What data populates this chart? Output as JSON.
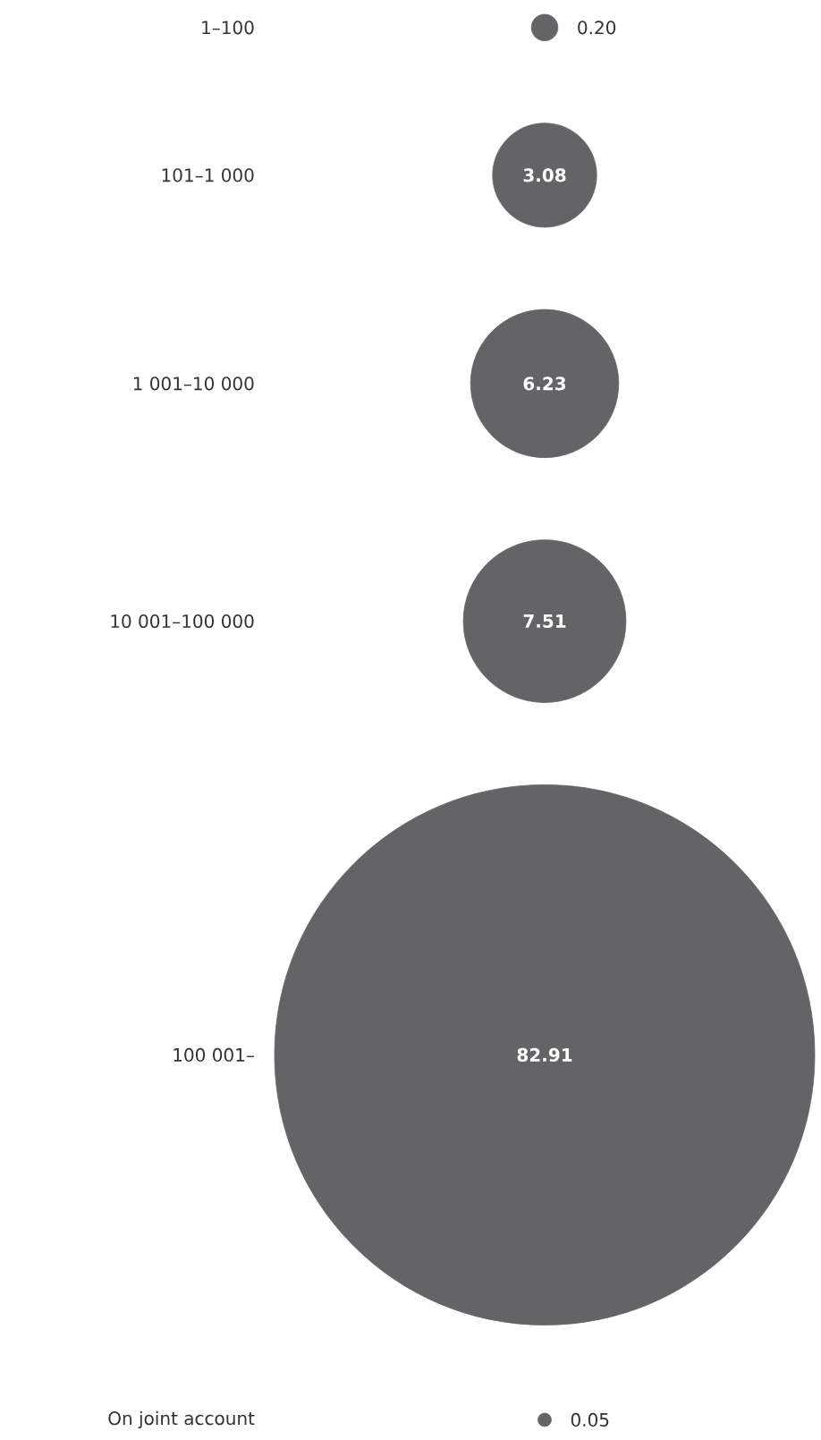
{
  "chart_data": {
    "type": "other",
    "categories": [
      "1–100",
      "101–1 000",
      "1 001–10 000",
      "10 001–100 000",
      "100 001–",
      "On joint account"
    ],
    "values": [
      0.2,
      3.08,
      6.23,
      7.51,
      82.91,
      0.05
    ],
    "value_labels": [
      "0.20",
      "3.08",
      "6.23",
      "7.51",
      "82.91",
      "0.05"
    ],
    "color": "#636466"
  }
}
